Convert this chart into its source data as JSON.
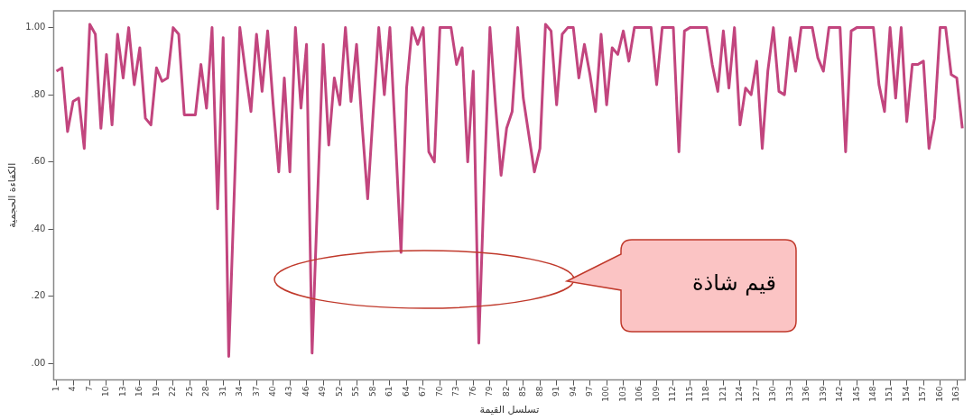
{
  "chart_data": {
    "type": "line",
    "xlabel": "تسلسل القيمة",
    "ylabel": "الكفاءة الحجمية",
    "categories": [
      "1",
      null,
      null,
      "4",
      null,
      null,
      "7",
      null,
      null,
      "10",
      null,
      null,
      "13",
      null,
      null,
      "16",
      null,
      null,
      "19",
      null,
      null,
      "22",
      null,
      null,
      "25",
      null,
      null,
      "28",
      null,
      null,
      "31",
      null,
      null,
      "34",
      null,
      null,
      "37",
      null,
      null,
      "40",
      null,
      null,
      "43",
      null,
      null,
      "46",
      null,
      null,
      "49",
      null,
      null,
      "52",
      null,
      null,
      "55",
      null,
      null,
      "58",
      null,
      null,
      "61",
      null,
      null,
      "64",
      null,
      null,
      "67",
      null,
      null,
      "70",
      null,
      null,
      "73",
      null,
      null,
      "76",
      null,
      null,
      "79",
      null,
      null,
      "82",
      null,
      null,
      "85",
      null,
      null,
      "88",
      null,
      null,
      "91",
      null,
      null,
      "94",
      null,
      null,
      "97",
      null,
      null,
      "100",
      null,
      null,
      "103",
      null,
      null,
      "106",
      null,
      null,
      "109",
      null,
      null,
      "112",
      null,
      null,
      "115",
      null,
      null,
      "118",
      null,
      null,
      "121",
      null,
      null,
      "124",
      null,
      null,
      "127",
      null,
      null,
      "130",
      null,
      null,
      "133",
      null,
      null,
      "136",
      null,
      null,
      "139",
      null,
      null,
      "142",
      null,
      null,
      "145",
      null,
      null,
      "148",
      null,
      null,
      "151",
      null,
      null,
      "154",
      null,
      null,
      "157",
      null,
      null,
      "160",
      null,
      null,
      "163",
      null
    ],
    "values": [
      0.87,
      0.88,
      0.69,
      0.78,
      0.79,
      0.64,
      1.01,
      0.98,
      0.7,
      0.92,
      0.71,
      0.98,
      0.85,
      1.0,
      0.83,
      0.94,
      0.73,
      0.71,
      0.88,
      0.84,
      0.85,
      1.0,
      0.98,
      0.74,
      0.74,
      0.74,
      0.89,
      0.76,
      1.0,
      0.46,
      0.97,
      0.02,
      0.51,
      1.0,
      0.87,
      0.75,
      0.98,
      0.81,
      0.99,
      0.77,
      0.57,
      0.85,
      0.57,
      1.0,
      0.76,
      0.95,
      0.03,
      0.5,
      0.95,
      0.65,
      0.85,
      0.77,
      1.0,
      0.78,
      0.95,
      0.71,
      0.49,
      0.75,
      1.0,
      0.8,
      1.0,
      0.67,
      0.33,
      0.82,
      1.0,
      0.95,
      1.0,
      0.63,
      0.6,
      1.0,
      1.0,
      1.0,
      0.89,
      0.94,
      0.6,
      0.87,
      0.06,
      0.55,
      1.0,
      0.77,
      0.56,
      0.7,
      0.75,
      1.0,
      0.79,
      0.68,
      0.57,
      0.64,
      1.01,
      0.99,
      0.77,
      0.98,
      1.0,
      1.0,
      0.85,
      0.95,
      0.86,
      0.75,
      0.98,
      0.77,
      0.94,
      0.92,
      0.99,
      0.9,
      1.0,
      1.0,
      1.0,
      1.0,
      0.83,
      1.0,
      1.0,
      1.0,
      0.63,
      0.99,
      1.0,
      1.0,
      1.0,
      1.0,
      0.89,
      0.81,
      0.99,
      0.82,
      1.0,
      0.71,
      0.82,
      0.8,
      0.9,
      0.64,
      0.87,
      1.0,
      0.81,
      0.8,
      0.97,
      0.87,
      1.0,
      1.0,
      1.0,
      0.91,
      0.87,
      1.0,
      1.0,
      1.0,
      0.63,
      0.99,
      1.0,
      1.0,
      1.0,
      1.0,
      0.83,
      0.75,
      1.0,
      0.79,
      1.0,
      0.72,
      0.89,
      0.89,
      0.9,
      0.64,
      0.73,
      1.0,
      1.0,
      0.86,
      0.85,
      0.7
    ],
    "color": "#c2457e",
    "ylim": [
      -0.05,
      1.05
    ],
    "yticks": [
      {
        "value": 0,
        "label": ".00"
      },
      {
        "value": 0.2,
        "label": ".20"
      },
      {
        "value": 0.4,
        "label": ".40"
      },
      {
        "value": 0.6,
        "label": ".60"
      },
      {
        "value": 0.8,
        "label": ".80"
      },
      {
        "value": 1,
        "label": "1.00"
      }
    ],
    "grid": false,
    "legend": false,
    "annotations": [
      "قيم شاذة"
    ]
  }
}
